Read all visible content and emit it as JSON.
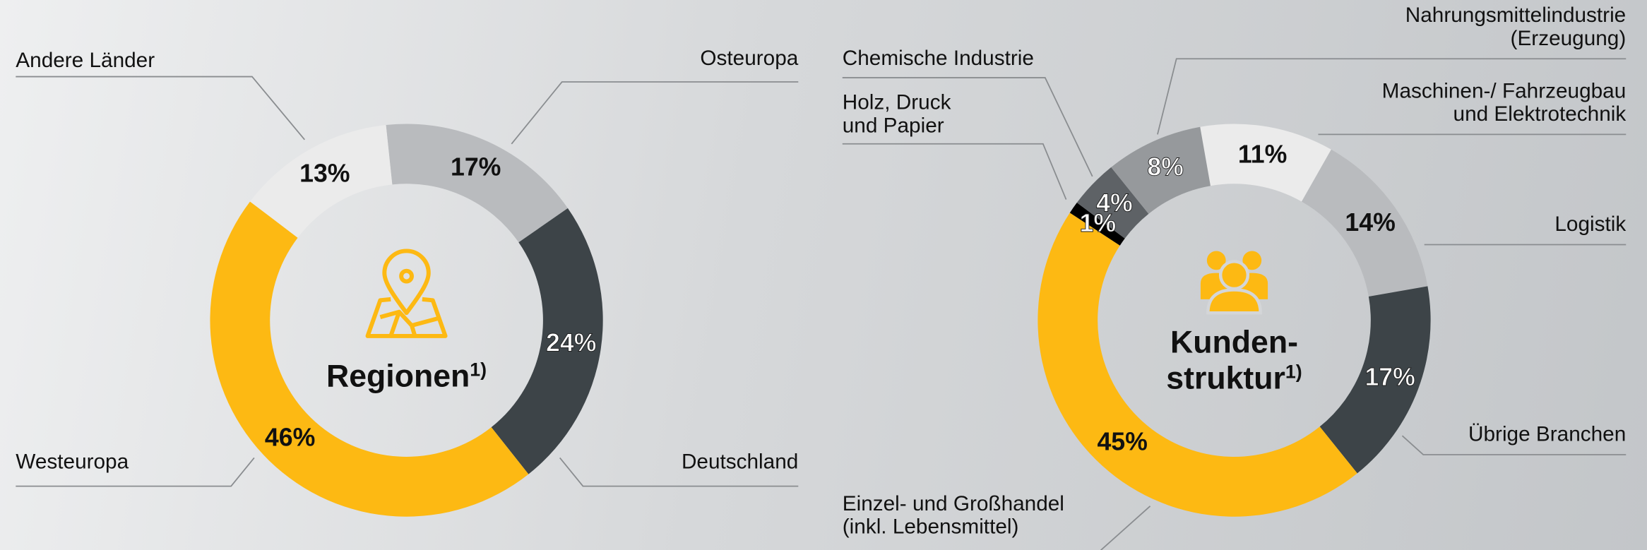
{
  "chart_data": [
    {
      "type": "pie",
      "title": "Regionen",
      "title_note": "1)",
      "categories": [
        "Osteuropa",
        "Deutschland",
        "Westeuropa",
        "Andere Länder"
      ],
      "values": [
        17,
        24,
        46,
        13
      ],
      "value_labels": [
        "17%",
        "24%",
        "46%",
        "13%"
      ],
      "colors": [
        "#b9bbbe",
        "#3d4448",
        "#fdb913",
        "#ebebeb"
      ]
    },
    {
      "type": "pie",
      "title": "Kunden-\nstruktur",
      "title_note": "1)",
      "categories": [
        "Maschinen-/ Fahrzeugbau\nund Elektrotechnik",
        "Logistik",
        "Übrige Branchen",
        "Einzel- und Großhandel\n(inkl. Lebensmittel)",
        "Holz, Druck\nund Papier",
        "Chemische Industrie",
        "Nahrungsmittelindustrie\n(Erzeugung)"
      ],
      "values": [
        11,
        14,
        17,
        45,
        1,
        4,
        8
      ],
      "value_labels": [
        "11%",
        "14%",
        "17%",
        "45%",
        "1%",
        "4%",
        "8%"
      ],
      "colors": [
        "#ebebeb",
        "#b9bbbe",
        "#3d4448",
        "#fdb913",
        "#000000",
        "#5e6266",
        "#96999c"
      ]
    }
  ]
}
